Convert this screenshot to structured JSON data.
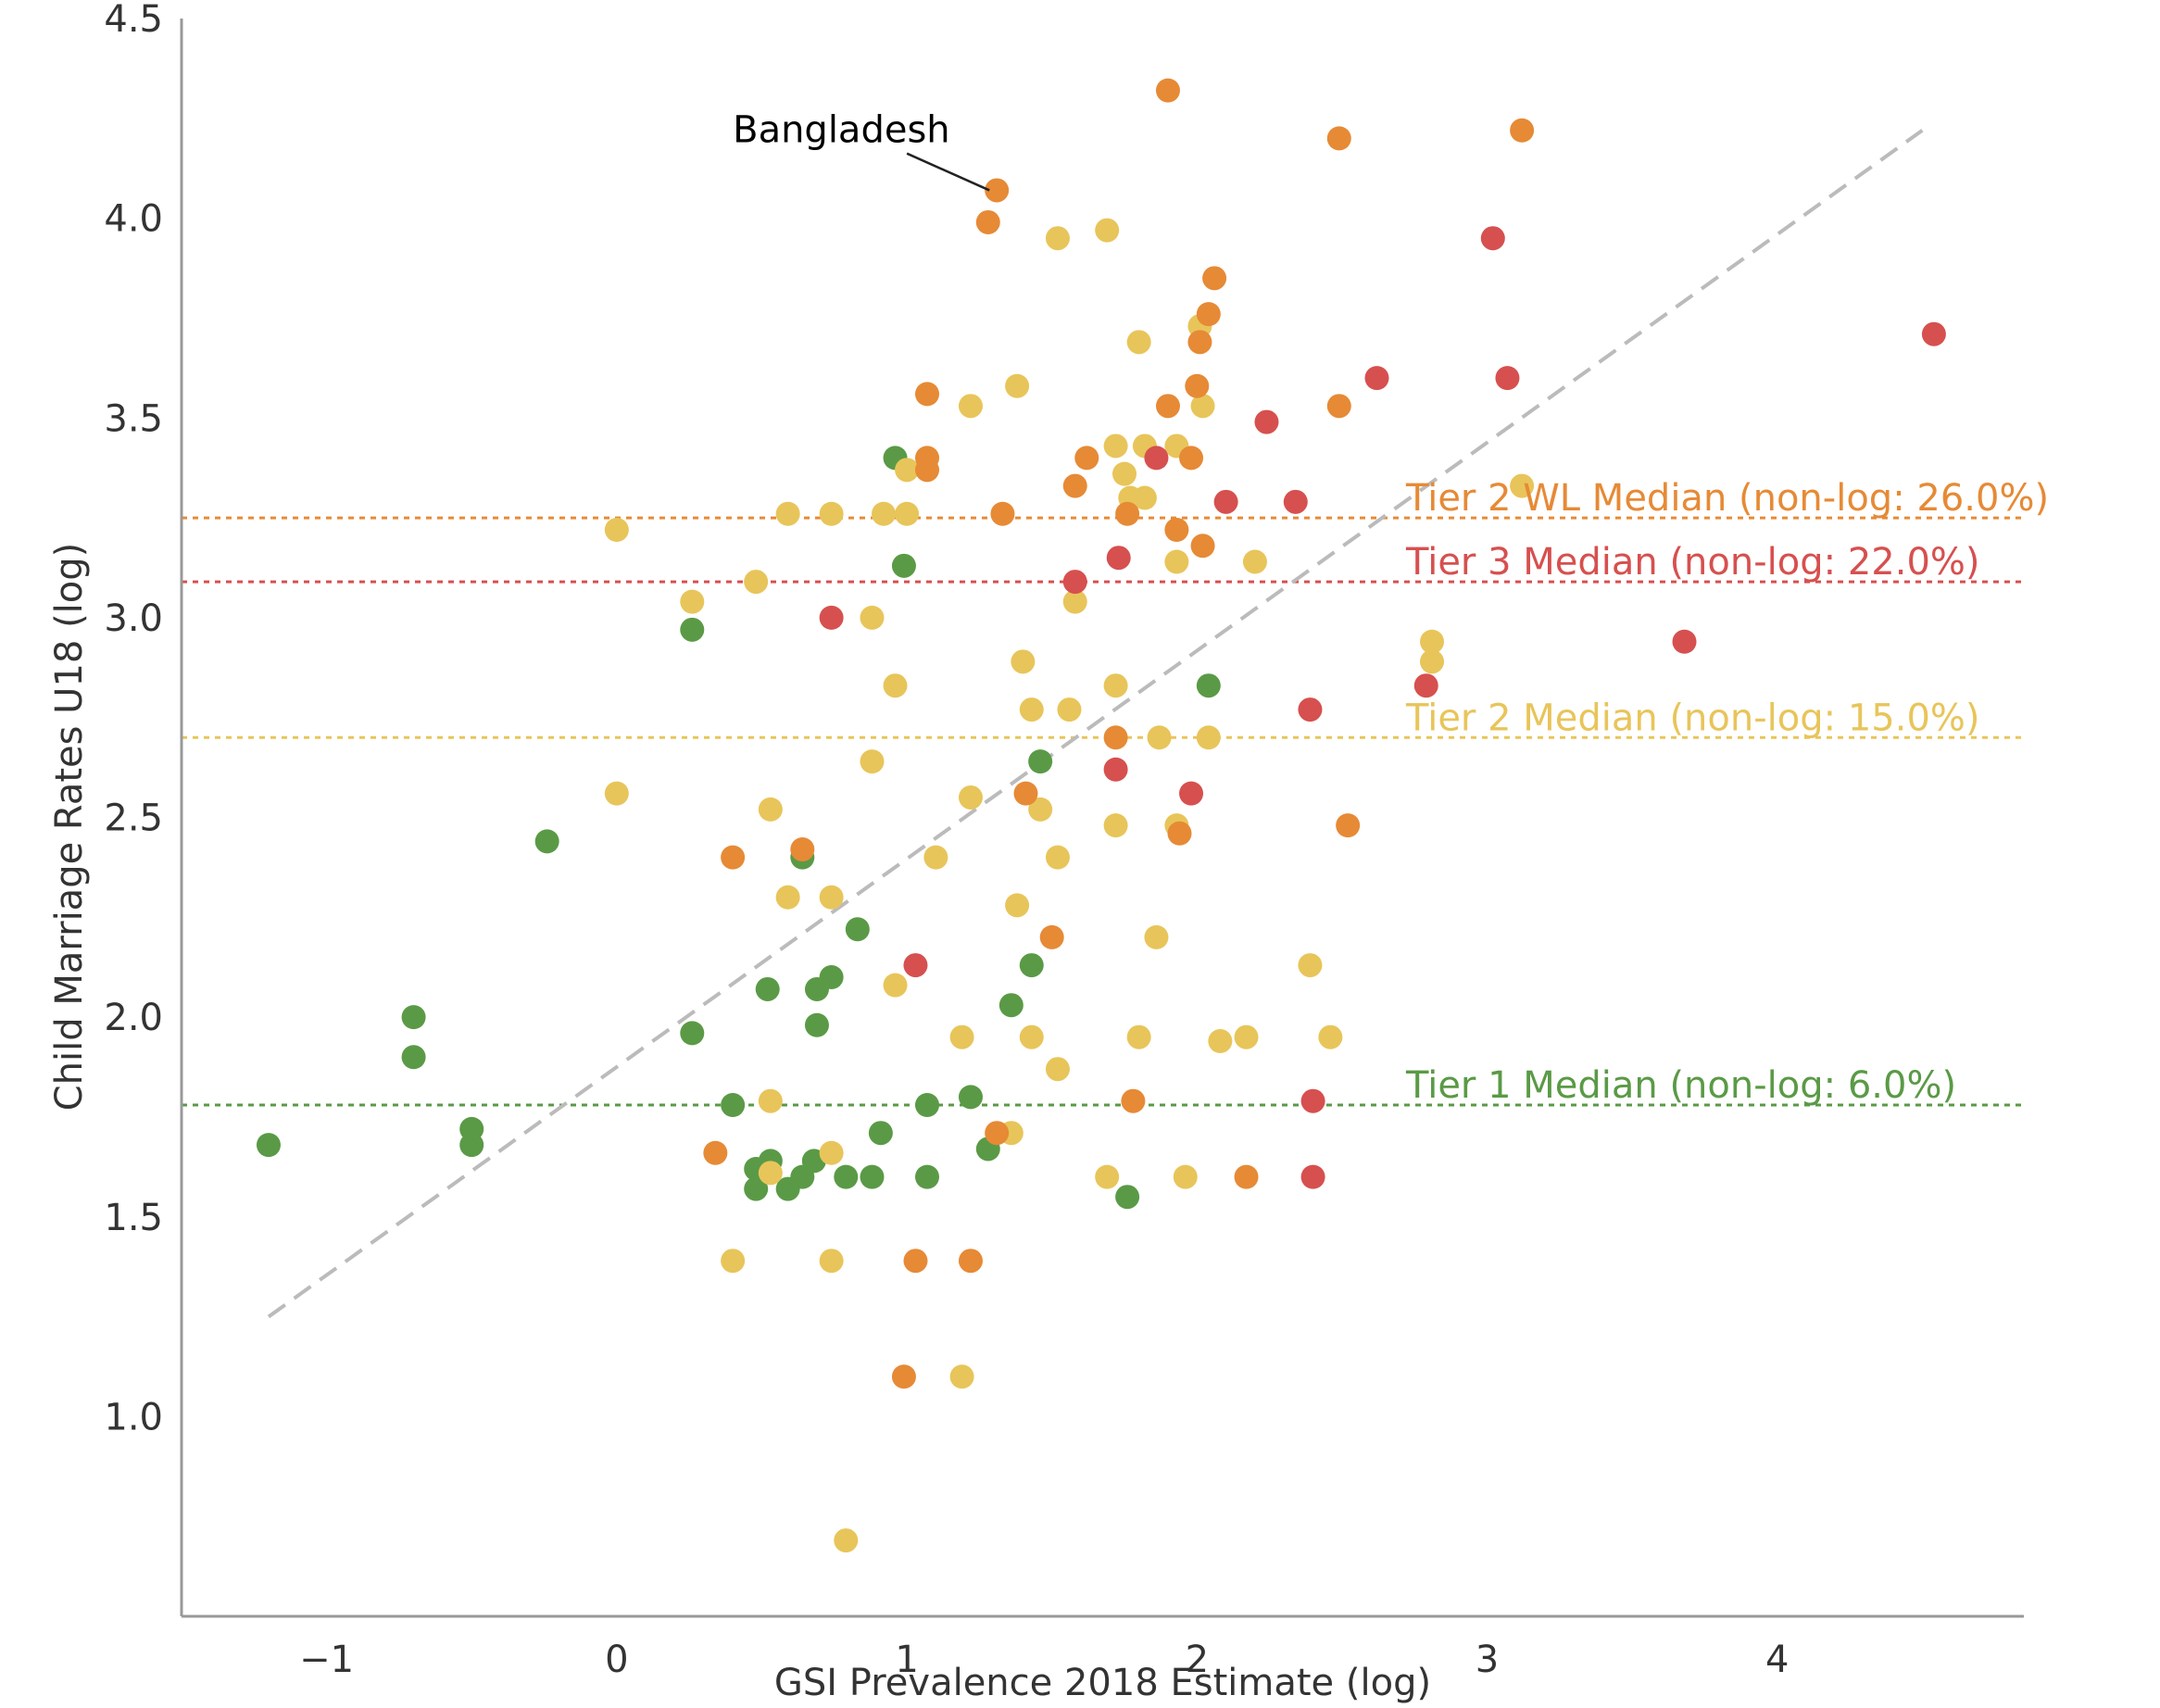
{
  "chart_data": {
    "type": "scatter",
    "title": "",
    "xlabel": "GSI Prevalence 2018 Estimate (log)",
    "ylabel": "Child Marriage Rates U18 (log)",
    "xlim": [
      -1.5,
      4.85
    ],
    "ylim": [
      0.5,
      4.5
    ],
    "x_ticks": [
      -1,
      0,
      1,
      2,
      3,
      4
    ],
    "x_tick_labels": [
      "−1",
      "0",
      "1",
      "2",
      "3",
      "4"
    ],
    "y_ticks": [
      1.0,
      1.5,
      2.0,
      2.5,
      3.0,
      3.5,
      4.0,
      4.5
    ],
    "y_tick_labels": [
      "1.0",
      "1.5",
      "2.0",
      "2.5",
      "3.0",
      "3.5",
      "4.0",
      "4.5"
    ],
    "grid": false,
    "colors": {
      "tier1": "#5a9a46",
      "tier2": "#e8c55a",
      "tier2wl": "#e68a36",
      "tier3": "#d6504f",
      "trend": "#bbbbbb",
      "axis": "#999999"
    },
    "medians": [
      {
        "tier": "tier2wl",
        "y": 3.25,
        "label": "Tier 2 WL Median (non-log: 26.0%)"
      },
      {
        "tier": "tier3",
        "y": 3.09,
        "label": "Tier 3 Median (non-log: 22.0%)"
      },
      {
        "tier": "tier2",
        "y": 2.7,
        "label": "Tier 2 Median (non-log: 15.0%)"
      },
      {
        "tier": "tier1",
        "y": 1.78,
        "label": "Tier 1 Median (non-log: 6.0%)"
      }
    ],
    "trendline": {
      "x": [
        -1.2,
        4.5
      ],
      "y": [
        1.25,
        4.22
      ]
    },
    "annotation": {
      "text": "Bangladesh",
      "x": 1.31,
      "y": 4.07,
      "text_x": 0.4,
      "text_y": 4.19
    },
    "series": [
      {
        "tier": "tier1",
        "points": [
          [
            -1.2,
            1.68
          ],
          [
            -0.7,
            2.0
          ],
          [
            -0.7,
            1.9
          ],
          [
            -0.5,
            1.72
          ],
          [
            -0.5,
            1.68
          ],
          [
            -0.24,
            2.44
          ],
          [
            0.26,
            2.97
          ],
          [
            0.26,
            1.96
          ],
          [
            0.4,
            1.78
          ],
          [
            0.48,
            1.62
          ],
          [
            0.48,
            1.57
          ],
          [
            0.52,
            2.07
          ],
          [
            0.53,
            1.64
          ],
          [
            0.59,
            1.57
          ],
          [
            0.64,
            1.6
          ],
          [
            0.64,
            2.4
          ],
          [
            0.68,
            1.64
          ],
          [
            0.69,
            2.07
          ],
          [
            0.69,
            1.98
          ],
          [
            0.74,
            2.1
          ],
          [
            0.79,
            1.6
          ],
          [
            0.83,
            2.22
          ],
          [
            0.88,
            1.6
          ],
          [
            0.91,
            1.71
          ],
          [
            0.96,
            3.4
          ],
          [
            0.99,
            3.13
          ],
          [
            1.07,
            1.78
          ],
          [
            1.07,
            1.6
          ],
          [
            1.22,
            1.8
          ],
          [
            1.28,
            1.67
          ],
          [
            1.36,
            2.03
          ],
          [
            1.43,
            2.13
          ],
          [
            1.46,
            2.64
          ],
          [
            1.76,
            1.55
          ],
          [
            2.04,
            2.83
          ]
        ]
      },
      {
        "tier": "tier2",
        "points": [
          [
            0.0,
            3.22
          ],
          [
            0.0,
            2.56
          ],
          [
            0.26,
            3.04
          ],
          [
            0.4,
            1.39
          ],
          [
            0.48,
            3.09
          ],
          [
            0.53,
            2.52
          ],
          [
            0.53,
            1.79
          ],
          [
            0.53,
            1.61
          ],
          [
            0.59,
            3.26
          ],
          [
            0.59,
            2.3
          ],
          [
            0.74,
            3.26
          ],
          [
            0.74,
            2.3
          ],
          [
            0.74,
            1.66
          ],
          [
            0.74,
            1.39
          ],
          [
            0.79,
            0.69
          ],
          [
            0.88,
            3.0
          ],
          [
            0.88,
            2.64
          ],
          [
            0.92,
            3.26
          ],
          [
            0.96,
            2.83
          ],
          [
            0.96,
            2.08
          ],
          [
            1.0,
            3.37
          ],
          [
            1.0,
            3.26
          ],
          [
            1.1,
            2.4
          ],
          [
            1.19,
            1.95
          ],
          [
            1.19,
            1.1
          ],
          [
            1.22,
            3.53
          ],
          [
            1.22,
            2.55
          ],
          [
            1.36,
            1.71
          ],
          [
            1.38,
            3.58
          ],
          [
            1.38,
            2.28
          ],
          [
            1.4,
            2.89
          ],
          [
            1.43,
            2.77
          ],
          [
            1.43,
            1.95
          ],
          [
            1.46,
            2.52
          ],
          [
            1.52,
            3.95
          ],
          [
            1.52,
            2.4
          ],
          [
            1.52,
            1.87
          ],
          [
            1.56,
            2.77
          ],
          [
            1.58,
            3.04
          ],
          [
            1.69,
            3.97
          ],
          [
            1.69,
            1.6
          ],
          [
            1.72,
            3.43
          ],
          [
            1.72,
            2.83
          ],
          [
            1.72,
            2.48
          ],
          [
            1.75,
            3.36
          ],
          [
            1.77,
            3.3
          ],
          [
            1.8,
            3.69
          ],
          [
            1.8,
            1.95
          ],
          [
            1.82,
            3.43
          ],
          [
            1.82,
            3.3
          ],
          [
            1.86,
            2.2
          ],
          [
            1.87,
            2.7
          ],
          [
            1.93,
            3.43
          ],
          [
            1.93,
            3.14
          ],
          [
            1.93,
            2.48
          ],
          [
            1.96,
            1.6
          ],
          [
            2.01,
            3.73
          ],
          [
            2.02,
            3.53
          ],
          [
            2.04,
            2.7
          ],
          [
            2.08,
            1.94
          ],
          [
            2.17,
            1.95
          ],
          [
            2.2,
            3.14
          ],
          [
            2.39,
            2.13
          ],
          [
            2.46,
            1.95
          ],
          [
            2.81,
            2.94
          ],
          [
            2.81,
            2.89
          ],
          [
            3.12,
            3.33
          ]
        ]
      },
      {
        "tier": "tier2wl",
        "points": [
          [
            0.34,
            1.66
          ],
          [
            0.4,
            2.4
          ],
          [
            0.64,
            2.42
          ],
          [
            0.99,
            1.1
          ],
          [
            1.03,
            1.39
          ],
          [
            1.07,
            3.56
          ],
          [
            1.07,
            3.4
          ],
          [
            1.07,
            3.37
          ],
          [
            1.22,
            1.39
          ],
          [
            1.28,
            3.99
          ],
          [
            1.31,
            4.07
          ],
          [
            1.31,
            1.71
          ],
          [
            1.33,
            3.26
          ],
          [
            1.41,
            2.56
          ],
          [
            1.5,
            2.2
          ],
          [
            1.58,
            3.33
          ],
          [
            1.62,
            3.4
          ],
          [
            1.72,
            2.7
          ],
          [
            1.76,
            3.26
          ],
          [
            1.78,
            1.79
          ],
          [
            1.9,
            4.32
          ],
          [
            1.9,
            3.53
          ],
          [
            1.93,
            3.22
          ],
          [
            1.94,
            2.46
          ],
          [
            1.98,
            3.4
          ],
          [
            2.0,
            3.58
          ],
          [
            2.01,
            3.69
          ],
          [
            2.02,
            3.18
          ],
          [
            2.04,
            3.76
          ],
          [
            2.06,
            3.85
          ],
          [
            2.17,
            1.6
          ],
          [
            2.49,
            4.2
          ],
          [
            2.49,
            3.53
          ],
          [
            2.52,
            2.48
          ],
          [
            3.12,
            4.22
          ]
        ]
      },
      {
        "tier": "tier3",
        "points": [
          [
            0.74,
            3.0
          ],
          [
            1.03,
            2.13
          ],
          [
            1.58,
            3.09
          ],
          [
            1.72,
            2.62
          ],
          [
            1.73,
            3.15
          ],
          [
            1.86,
            3.4
          ],
          [
            1.98,
            2.56
          ],
          [
            2.1,
            3.29
          ],
          [
            2.24,
            3.49
          ],
          [
            2.34,
            3.29
          ],
          [
            2.39,
            2.77
          ],
          [
            2.4,
            1.79
          ],
          [
            2.4,
            1.6
          ],
          [
            2.62,
            3.6
          ],
          [
            2.79,
            2.83
          ],
          [
            3.02,
            3.95
          ],
          [
            3.07,
            3.6
          ],
          [
            3.68,
            2.94
          ],
          [
            4.54,
            3.71
          ]
        ]
      }
    ]
  }
}
